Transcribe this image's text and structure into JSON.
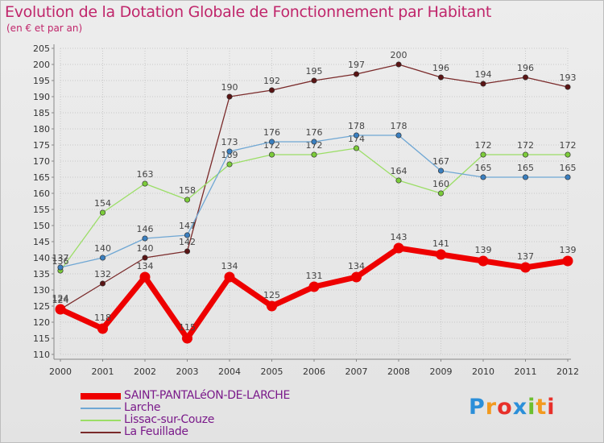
{
  "chart_data": {
    "type": "line",
    "title": "Evolution de la Dotation Globale de Fonctionnement par Habitant",
    "subtitle": "(en € et par an)",
    "xlabel": "",
    "ylabel": "",
    "categories": [
      "2000",
      "2001",
      "2002",
      "2003",
      "2004",
      "2005",
      "2006",
      "2007",
      "2008",
      "2009",
      "2010",
      "2011",
      "2012"
    ],
    "ylim": [
      110,
      205
    ],
    "yticks": [
      110,
      115,
      120,
      125,
      130,
      135,
      140,
      145,
      150,
      155,
      160,
      165,
      170,
      175,
      180,
      185,
      190,
      195,
      200,
      205
    ],
    "grid": true,
    "legend_position": "bottom-left",
    "series": [
      {
        "name": "SAINT-PANTALéON-DE-LARCHE",
        "color": "#ee0000",
        "point_color": "#ee0000",
        "values": [
          124,
          118,
          134,
          115,
          134,
          125,
          131,
          134,
          143,
          141,
          139,
          137,
          139
        ]
      },
      {
        "name": "Larche",
        "color": "#6fa7d4",
        "point_color": "#3a7fc0",
        "values": [
          137,
          140,
          146,
          147,
          173,
          176,
          176,
          178,
          178,
          167,
          165,
          165,
          165
        ]
      },
      {
        "name": "Lissac-sur-Couze",
        "color": "#9bde66",
        "point_color": "#7ccc3a",
        "values": [
          136,
          154,
          163,
          158,
          169,
          172,
          172,
          174,
          164,
          160,
          172,
          172,
          172
        ]
      },
      {
        "name": "La Feuillade",
        "color": "#7a2a2a",
        "point_color": "#5a1414",
        "values": [
          124,
          132,
          140,
          142,
          190,
          192,
          195,
          197,
          200,
          196,
          194,
          196,
          193
        ]
      }
    ]
  },
  "brand": {
    "letters": [
      "P",
      "r",
      "o",
      "x",
      "i",
      "t",
      "i"
    ],
    "colors": [
      "#2b8fd9",
      "#f29a1f",
      "#e8302a",
      "#2b8fd9",
      "#6cbf2f",
      "#f29a1f",
      "#e8302a"
    ]
  }
}
